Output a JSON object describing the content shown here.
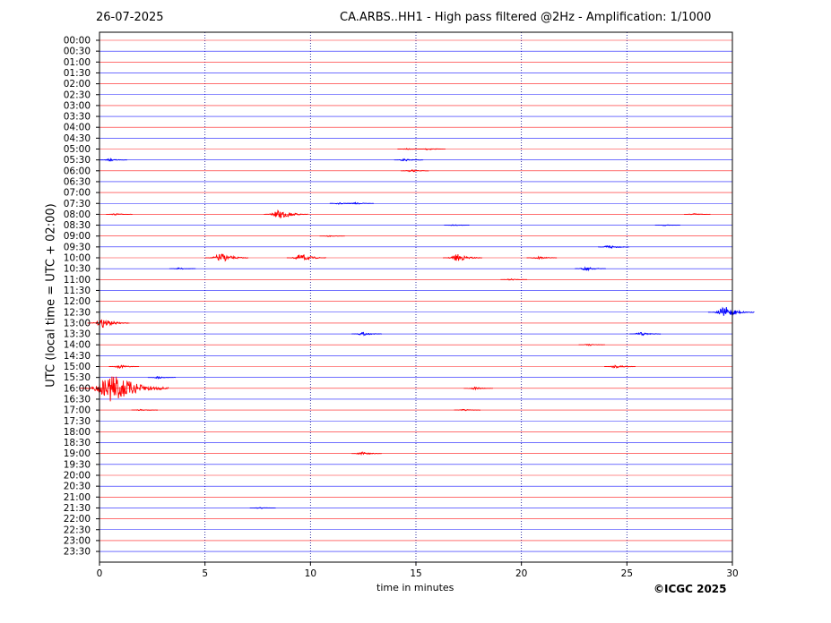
{
  "header": {
    "date": "26-07-2025",
    "title": "CA.ARBS..HH1 - High pass filtered @2Hz - Amplification: 1/1000"
  },
  "footer": {
    "copyright": "©ICGC 2025"
  },
  "colors": {
    "trace_a": "#ff0000",
    "trace_b": "#0000ff",
    "grid": "#00008b",
    "axis": "#000000"
  },
  "chart_data": {
    "type": "line",
    "title": "CA.ARBS..HH1 - High pass filtered @2Hz - Amplification: 1/1000",
    "xlabel": "time in minutes",
    "ylabel": "UTC (local time = UTC + 02:00)",
    "xlim": [
      0,
      30
    ],
    "x_ticks": [
      0,
      5,
      10,
      15,
      20,
      25,
      30
    ],
    "vertical_gridlines": [
      5,
      10,
      15,
      20,
      25
    ],
    "grid": "vertical dotted",
    "rows": [
      "00:00",
      "00:30",
      "01:00",
      "01:30",
      "02:00",
      "02:30",
      "03:00",
      "03:30",
      "04:00",
      "04:30",
      "05:00",
      "05:30",
      "06:00",
      "06:30",
      "07:00",
      "07:30",
      "08:00",
      "08:30",
      "09:00",
      "09:30",
      "10:00",
      "10:30",
      "11:00",
      "11:30",
      "12:00",
      "12:30",
      "13:00",
      "13:30",
      "14:00",
      "14:30",
      "15:00",
      "15:30",
      "16:00",
      "16:30",
      "17:00",
      "17:30",
      "18:00",
      "18:30",
      "19:00",
      "19:30",
      "20:00",
      "20:30",
      "21:00",
      "21:30",
      "22:00",
      "22:30",
      "23:00",
      "23:30"
    ],
    "row_colors": "alternating red / blue",
    "events": [
      {
        "row": "05:00",
        "minute": 14.6,
        "amplitude": 0.12
      },
      {
        "row": "05:00",
        "minute": 15.6,
        "amplitude": 0.18
      },
      {
        "row": "05:30",
        "minute": 0.5,
        "amplitude": 0.2
      },
      {
        "row": "05:30",
        "minute": 14.5,
        "amplitude": 0.25
      },
      {
        "row": "06:00",
        "minute": 14.8,
        "amplitude": 0.22
      },
      {
        "row": "07:30",
        "minute": 11.4,
        "amplitude": 0.15
      },
      {
        "row": "07:30",
        "minute": 12.2,
        "amplitude": 0.18
      },
      {
        "row": "08:00",
        "minute": 0.8,
        "amplitude": 0.15
      },
      {
        "row": "08:00",
        "minute": 8.6,
        "amplitude": 0.9
      },
      {
        "row": "08:00",
        "minute": 28.2,
        "amplitude": 0.15
      },
      {
        "row": "08:30",
        "minute": 16.8,
        "amplitude": 0.1
      },
      {
        "row": "08:30",
        "minute": 26.8,
        "amplitude": 0.1
      },
      {
        "row": "09:00",
        "minute": 10.9,
        "amplitude": 0.1
      },
      {
        "row": "09:30",
        "minute": 24.2,
        "amplitude": 0.35
      },
      {
        "row": "10:00",
        "minute": 5.8,
        "amplitude": 0.85
      },
      {
        "row": "10:00",
        "minute": 9.6,
        "amplitude": 0.7
      },
      {
        "row": "10:00",
        "minute": 17.0,
        "amplitude": 0.7
      },
      {
        "row": "10:00",
        "minute": 20.8,
        "amplitude": 0.3
      },
      {
        "row": "10:30",
        "minute": 3.8,
        "amplitude": 0.15
      },
      {
        "row": "10:30",
        "minute": 23.1,
        "amplitude": 0.35
      },
      {
        "row": "11:00",
        "minute": 19.5,
        "amplitude": 0.15
      },
      {
        "row": "12:30",
        "minute": 29.7,
        "amplitude": 1.0
      },
      {
        "row": "13:00",
        "minute": 0.2,
        "amplitude": 0.8
      },
      {
        "row": "13:30",
        "minute": 12.5,
        "amplitude": 0.3
      },
      {
        "row": "13:30",
        "minute": 25.7,
        "amplitude": 0.35
      },
      {
        "row": "14:00",
        "minute": 23.2,
        "amplitude": 0.15
      },
      {
        "row": "15:00",
        "minute": 1.0,
        "amplitude": 0.3
      },
      {
        "row": "15:00",
        "minute": 24.5,
        "amplitude": 0.35
      },
      {
        "row": "15:30",
        "minute": 2.8,
        "amplitude": 0.2
      },
      {
        "row": "16:00",
        "minute": 0.7,
        "amplitude": 2.8
      },
      {
        "row": "16:00",
        "minute": 17.8,
        "amplitude": 0.25
      },
      {
        "row": "17:00",
        "minute": 2.0,
        "amplitude": 0.15
      },
      {
        "row": "17:00",
        "minute": 17.3,
        "amplitude": 0.15
      },
      {
        "row": "19:00",
        "minute": 12.5,
        "amplitude": 0.3
      },
      {
        "row": "21:30",
        "minute": 7.6,
        "amplitude": 0.12
      }
    ]
  }
}
